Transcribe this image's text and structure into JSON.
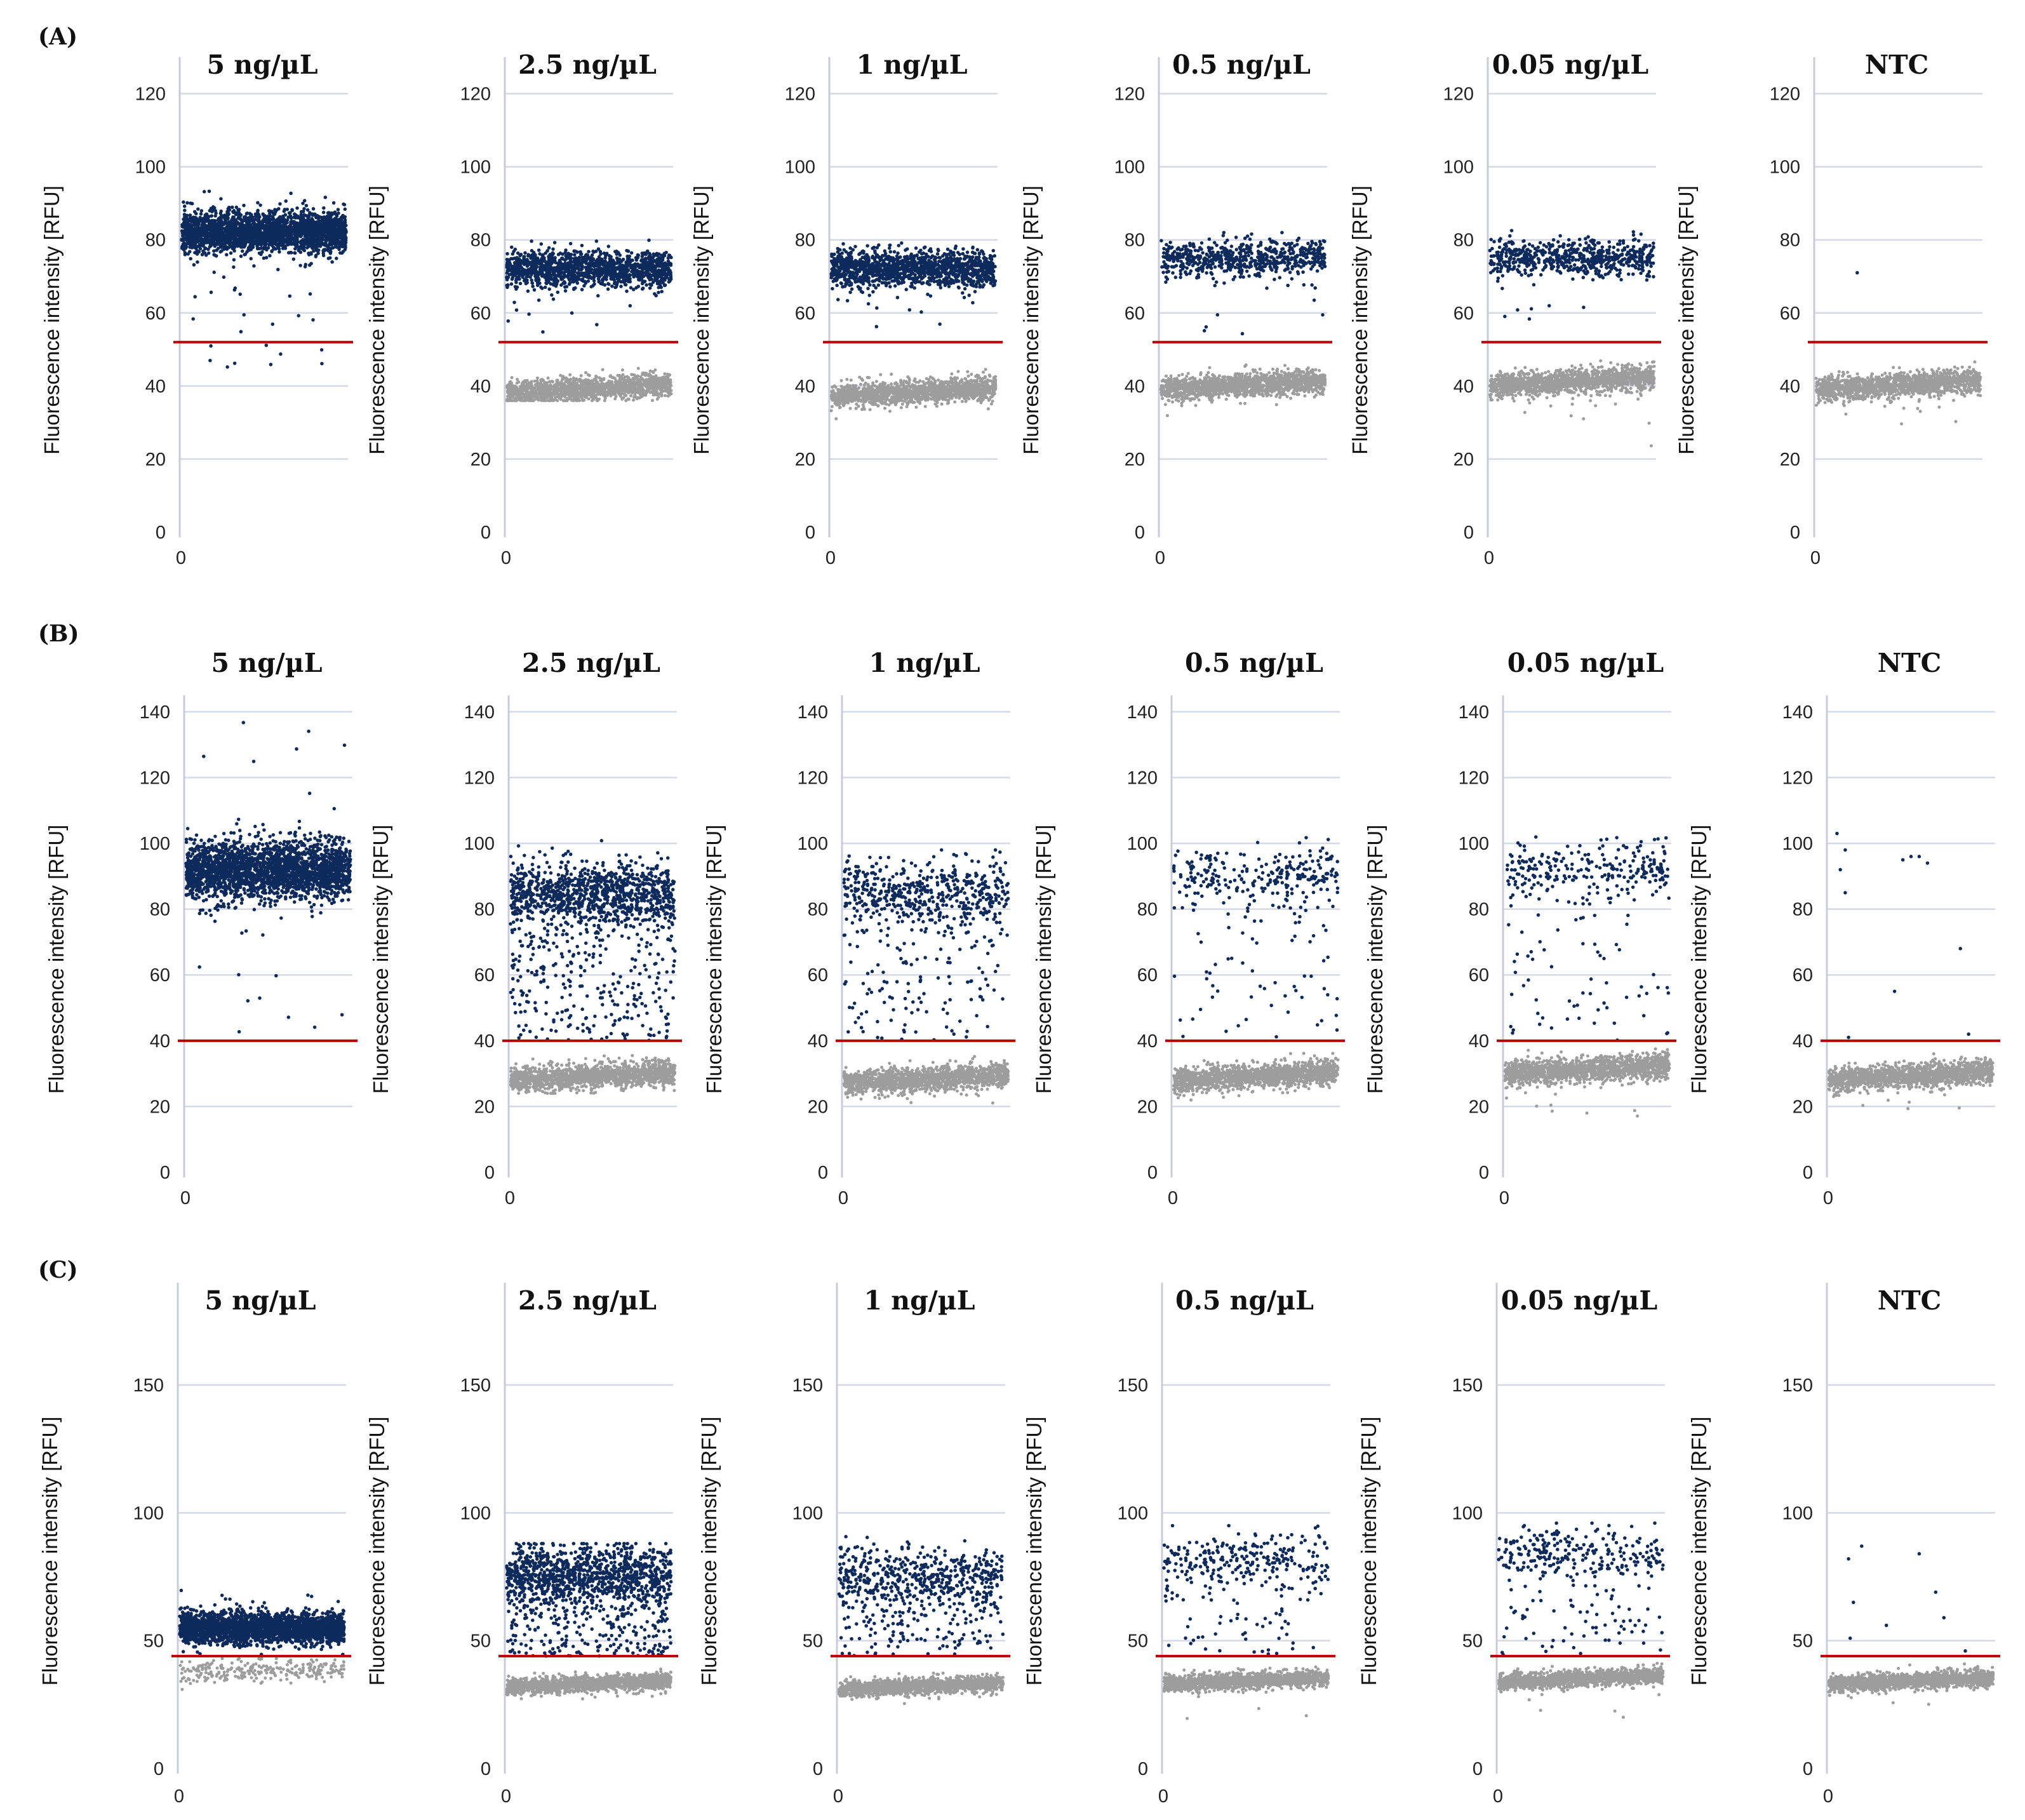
{
  "figure": {
    "colors": {
      "positive": "#0d2a5c",
      "negative": "#9d9d9d",
      "threshold": "#c00000",
      "grid": "#d5d8e6",
      "axis": "#c8cbdc"
    }
  },
  "chart_data": [
    {
      "panel": "(A)",
      "type": "scatter",
      "ylabel": "Fluorescence intensity [RFU]",
      "ylim": [
        0,
        130
      ],
      "yticks": [
        0,
        20,
        40,
        60,
        80,
        100,
        120
      ],
      "xticks": [
        "0"
      ],
      "threshold": 52,
      "grid": true,
      "subplots": [
        {
          "title": "5 ng/µL",
          "positive": {
            "mean": 82,
            "sd": 2.8,
            "density": "very high",
            "min": 45,
            "max": 95
          },
          "negative": null
        },
        {
          "title": "2.5 ng/µL",
          "positive": {
            "mean": 72,
            "sd": 2.5,
            "density": "high",
            "min": 53,
            "max": 82
          },
          "negative": {
            "mean": 39,
            "sd": 1.6,
            "min": 36,
            "max": 45
          }
        },
        {
          "title": "1 ng/µL",
          "positive": {
            "mean": 72,
            "sd": 2.5,
            "density": "high",
            "min": 55,
            "max": 81
          },
          "negative": {
            "mean": 38,
            "sd": 1.6,
            "min": 31,
            "max": 45
          }
        },
        {
          "title": "0.5 ng/µL",
          "positive": {
            "mean": 75,
            "sd": 2.5,
            "density": "medium",
            "min": 53,
            "max": 82
          },
          "negative": {
            "mean": 40,
            "sd": 1.6,
            "min": 27,
            "max": 47
          }
        },
        {
          "title": "0.05 ng/µL",
          "positive": {
            "mean": 75,
            "sd": 2.5,
            "density": "medium",
            "min": 58,
            "max": 83
          },
          "negative": {
            "mean": 41,
            "sd": 1.7,
            "min": 23,
            "max": 49
          }
        },
        {
          "title": "NTC",
          "positive": {
            "outliers": [
              [
                0.25,
                71
              ]
            ]
          },
          "negative": {
            "mean": 40,
            "sd": 1.6,
            "min": 29,
            "max": 47
          }
        }
      ]
    },
    {
      "panel": "(B)",
      "type": "scatter",
      "ylabel": "Fluorescence intensity [RFU]",
      "ylim": [
        0,
        145
      ],
      "yticks": [
        0,
        20,
        40,
        60,
        80,
        100,
        120,
        140
      ],
      "xticks": [
        "0"
      ],
      "threshold": 40,
      "grid": true,
      "subplots": [
        {
          "title": "5 ng/µL",
          "positive": {
            "mean": 92,
            "sd": 4.5,
            "density": "very high",
            "min": 36,
            "max": 142
          },
          "negative": null
        },
        {
          "title": "2.5 ng/µL",
          "positive": {
            "mean": 85,
            "sd": 5,
            "density": "high",
            "min": 40,
            "max": 102,
            "spread": "wide"
          },
          "negative": {
            "mean": 29,
            "sd": 1.8,
            "min": 24,
            "max": 36
          }
        },
        {
          "title": "1 ng/µL",
          "positive": {
            "mean": 85,
            "sd": 5,
            "density": "medium",
            "min": 40,
            "max": 98,
            "spread": "wide"
          },
          "negative": {
            "mean": 28,
            "sd": 1.8,
            "min": 21,
            "max": 36
          }
        },
        {
          "title": "0.5 ng/µL",
          "positive": {
            "mean": 90,
            "sd": 4,
            "density": "low",
            "min": 40,
            "max": 103,
            "spread": "wide"
          },
          "negative": {
            "mean": 29,
            "sd": 1.8,
            "min": 18,
            "max": 37
          }
        },
        {
          "title": "0.05 ng/µL",
          "positive": {
            "mean": 92,
            "sd": 4,
            "density": "low",
            "min": 40,
            "max": 110,
            "spread": "wide"
          },
          "negative": {
            "mean": 31,
            "sd": 1.9,
            "min": 16,
            "max": 39
          }
        },
        {
          "title": "NTC",
          "positive": {
            "outliers": [
              [
                0.05,
                103
              ],
              [
                0.07,
                92
              ],
              [
                0.1,
                98
              ],
              [
                0.1,
                85
              ],
              [
                0.45,
                95
              ],
              [
                0.5,
                96
              ],
              [
                0.55,
                96
              ],
              [
                0.6,
                94
              ],
              [
                0.4,
                55
              ],
              [
                0.8,
                68
              ],
              [
                0.85,
                42
              ],
              [
                0.12,
                41
              ]
            ]
          },
          "negative": {
            "mean": 29,
            "sd": 1.8,
            "min": 19,
            "max": 36
          }
        }
      ]
    },
    {
      "panel": "(C)",
      "type": "scatter",
      "ylabel": "Fluorescence intensity [RFU]",
      "ylim": [
        0,
        190
      ],
      "yticks": [
        0,
        50,
        100,
        150
      ],
      "xticks": [
        "0"
      ],
      "threshold": 44,
      "grid": true,
      "subplots": [
        {
          "title": "5 ng/µL",
          "positive": {
            "mean": 55,
            "sd": 3,
            "density": "very high",
            "min": 44,
            "max": 70
          },
          "negative": {
            "mean": 38,
            "sd": 2.5,
            "density": "low",
            "min": 30,
            "max": 43
          }
        },
        {
          "title": "2.5 ng/µL",
          "positive": {
            "mean": 76,
            "sd": 6,
            "density": "high",
            "min": 44,
            "max": 88,
            "spread": "wide"
          },
          "negative": {
            "mean": 33,
            "sd": 1.5,
            "min": 27,
            "max": 40
          }
        },
        {
          "title": "1 ng/µL",
          "positive": {
            "mean": 75,
            "sd": 6,
            "density": "medium",
            "min": 44,
            "max": 92,
            "spread": "wide"
          },
          "negative": {
            "mean": 32,
            "sd": 1.5,
            "min": 25,
            "max": 40
          }
        },
        {
          "title": "0.5 ng/µL",
          "positive": {
            "mean": 82,
            "sd": 5,
            "density": "low",
            "min": 44,
            "max": 95,
            "spread": "wide"
          },
          "negative": {
            "mean": 34,
            "sd": 1.6,
            "min": 19,
            "max": 41
          }
        },
        {
          "title": "0.05 ng/µL",
          "positive": {
            "mean": 84,
            "sd": 5,
            "density": "low",
            "min": 44,
            "max": 96,
            "spread": "wide"
          },
          "negative": {
            "mean": 35,
            "sd": 1.6,
            "min": 17,
            "max": 42
          }
        },
        {
          "title": "NTC",
          "positive": {
            "outliers": [
              [
                0.12,
                82
              ],
              [
                0.15,
                65
              ],
              [
                0.2,
                87
              ],
              [
                0.35,
                56
              ],
              [
                0.55,
                84
              ],
              [
                0.65,
                69
              ],
              [
                0.7,
                59
              ],
              [
                0.13,
                51
              ],
              [
                0.83,
                46
              ]
            ]
          },
          "negative": {
            "mean": 34,
            "sd": 1.6,
            "min": 21,
            "max": 41
          }
        }
      ]
    }
  ]
}
